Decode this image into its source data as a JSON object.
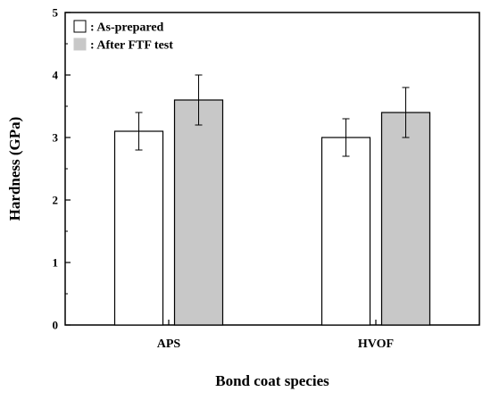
{
  "chart_data": {
    "type": "bar",
    "title": "",
    "xlabel": "Bond coat species",
    "ylabel": "Hardness (GPa)",
    "categories": [
      "APS",
      "HVOF"
    ],
    "ylim": [
      0,
      5
    ],
    "yticks": [
      0,
      1,
      2,
      3,
      4,
      5
    ],
    "grid": false,
    "legend_position": "top-left",
    "series": [
      {
        "name": ": As-prepared",
        "values": [
          3.1,
          3.0
        ],
        "errors": [
          0.3,
          0.3
        ],
        "color": "#ffffff"
      },
      {
        "name": ": After FTF test",
        "values": [
          3.6,
          3.4
        ],
        "errors": [
          0.4,
          0.4
        ],
        "color": "#c8c8c8"
      }
    ]
  }
}
